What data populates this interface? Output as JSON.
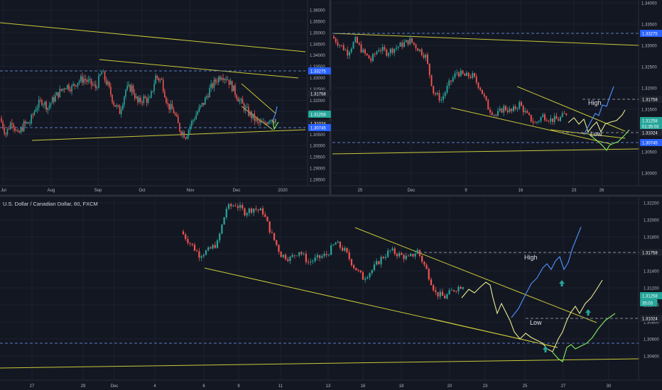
{
  "panels": {
    "top_left": {
      "price_labels": [
        "1.36000",
        "1.35500",
        "1.35000",
        "1.34500",
        "1.34000",
        "1.33500",
        "1.33000",
        "1.32500",
        "1.32000",
        "1.31500",
        "1.31000",
        "1.30500",
        "1.30000",
        "1.29500",
        "1.29000",
        "1.28500"
      ],
      "time_labels": [
        "Jul",
        "Aug",
        "Sep",
        "Oct",
        "Nov",
        "Dec",
        "2020"
      ],
      "badges": [
        {
          "text": "1.33275",
          "color": "#2962ff"
        },
        {
          "text": "1.31758",
          "color": "#1e222d"
        },
        {
          "text": "1.31258",
          "color": "#26a69a"
        },
        {
          "text": "1.31024",
          "color": "#1e222d"
        },
        {
          "text": "1.30745",
          "color": "#2962ff"
        }
      ]
    },
    "top_right": {
      "price_labels": [
        "1.34000",
        "1.33500",
        "1.33000",
        "1.32500",
        "1.32000",
        "1.31500",
        "1.31000",
        "1.30500",
        "1.30000"
      ],
      "time_labels": [
        "25",
        "Dec",
        "9",
        "16",
        "23",
        "26"
      ],
      "annotations": {
        "high": "High",
        "low": "Low"
      },
      "badges": [
        {
          "text": "1.33275",
          "color": "#2962ff"
        },
        {
          "text": "1.31758",
          "color": "#1e222d"
        },
        {
          "text": "1.31258",
          "color": "#26a69a"
        },
        {
          "text": "01:35:03",
          "color": "#26a69a"
        },
        {
          "text": "1.31024",
          "color": "#1e222d"
        },
        {
          "text": "1.30745",
          "color": "#2962ff"
        }
      ]
    },
    "bottom": {
      "title": "U.S. Dollar / Canadian Dollar, 60, FXCM",
      "price_labels": [
        "1.32200",
        "1.32000",
        "1.31800",
        "1.31600",
        "1.31400",
        "1.31200",
        "1.31000",
        "1.30800",
        "1.30600",
        "1.30400"
      ],
      "time_labels": [
        "27",
        "29",
        "Dec",
        "4",
        "6",
        "9",
        "11",
        "13",
        "16",
        "18",
        "20",
        "23",
        "25",
        "27",
        "30"
      ],
      "annotations": {
        "high": "High",
        "low": "Low"
      },
      "badges": [
        {
          "text": "1.31758",
          "color": "#1e222d"
        },
        {
          "text": "1.31258",
          "color": "#26a69a"
        },
        {
          "text": "35:03",
          "color": "#26a69a"
        },
        {
          "text": "1.31024",
          "color": "#1e222d"
        }
      ]
    }
  },
  "chart_data": [
    {
      "type": "candlestick",
      "panel": "daily overview",
      "x": [
        "Jul",
        "Aug",
        "Sep",
        "Oct",
        "Nov",
        "Dec",
        "2020"
      ],
      "ylim": [
        1.285,
        1.3625
      ],
      "levels": [
        1.33275,
        1.30745
      ],
      "last_price": 1.31258,
      "approx_closes": [
        1.313,
        1.306,
        1.312,
        1.305,
        1.31,
        1.311,
        1.318,
        1.321,
        1.318,
        1.322,
        1.325,
        1.328,
        1.327,
        1.33,
        1.331,
        1.329,
        1.327,
        1.334,
        1.328,
        1.32,
        1.316,
        1.326,
        1.327,
        1.32,
        1.322,
        1.321,
        1.332,
        1.33,
        1.319,
        1.316,
        1.308,
        1.305,
        1.311,
        1.316,
        1.32,
        1.326,
        1.33,
        1.333,
        1.331,
        1.326,
        1.321,
        1.317,
        1.314,
        1.311,
        1.31,
        1.313,
        1.3126
      ]
    },
    {
      "type": "candlestick",
      "panel": "4-hour",
      "x": [
        "25",
        "Dec",
        "9",
        "16",
        "23",
        "26"
      ],
      "ylim": [
        1.2975,
        1.3405
      ],
      "levels": [
        1.33275,
        1.30745
      ],
      "last_price": 1.31258,
      "approx_closes": [
        1.332,
        1.33,
        1.328,
        1.331,
        1.328,
        1.326,
        1.329,
        1.328,
        1.329,
        1.33,
        1.331,
        1.329,
        1.327,
        1.318,
        1.316,
        1.32,
        1.323,
        1.322,
        1.322,
        1.319,
        1.314,
        1.312,
        1.314,
        1.313,
        1.315,
        1.312,
        1.31,
        1.312,
        1.311,
        1.311,
        1.3126
      ],
      "projections": [
        {
          "name": "High",
          "values": [
            1.3126,
            1.311,
            1.313,
            1.316,
            1.318,
            1.322
          ]
        },
        {
          "name": "Low",
          "values": [
            1.3126,
            1.309,
            1.308,
            1.306,
            1.308,
            1.31
          ]
        }
      ]
    },
    {
      "type": "candlestick",
      "panel": "60",
      "x": [
        "27",
        "29",
        "Dec",
        "4",
        "6",
        "9",
        "11",
        "13",
        "16",
        "18",
        "20",
        "23",
        "25",
        "27",
        "30"
      ],
      "ylim": [
        1.3034,
        1.3232
      ],
      "levels": [
        1.31758,
        1.31024,
        1.30745
      ],
      "last_price": 1.31258,
      "approx_closes": [
        1.3195,
        1.318,
        1.3165,
        1.317,
        1.318,
        1.3225,
        1.323,
        1.322,
        1.3225,
        1.322,
        1.319,
        1.3165,
        1.316,
        1.317,
        1.3155,
        1.316,
        1.3165,
        1.318,
        1.317,
        1.315,
        1.3135,
        1.3145,
        1.316,
        1.317,
        1.3165,
        1.316,
        1.317,
        1.3145,
        1.3115,
        1.311,
        1.312,
        1.3126
      ],
      "projections": [
        {
          "name": "High",
          "values": [
            1.3126,
            1.314,
            1.311,
            1.315,
            1.316,
            1.32
          ]
        },
        {
          "name": "Low",
          "values": [
            1.3126,
            1.309,
            1.307,
            1.306,
            1.309,
            1.311
          ]
        }
      ]
    }
  ]
}
